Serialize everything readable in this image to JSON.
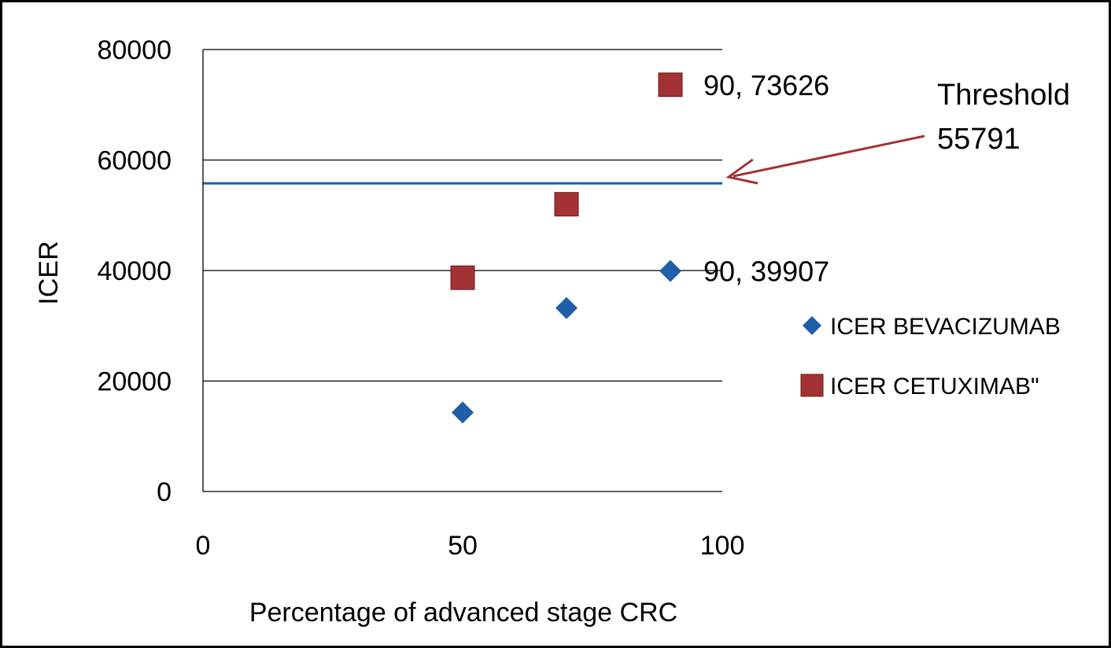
{
  "chart_data": {
    "type": "scatter",
    "xlabel": "Percentage of advanced stage CRC",
    "ylabel": "ICER",
    "xlim": [
      0,
      100
    ],
    "ylim": [
      0,
      80000
    ],
    "x_ticks": [
      "0",
      "50",
      "100"
    ],
    "y_ticks": [
      "0",
      "20000",
      "40000",
      "60000",
      "80000"
    ],
    "grid": "horizontal",
    "legend_position": "right",
    "series": [
      {
        "name": "ICER BEVACIZUMAB",
        "marker": "diamond",
        "color": "#1f5ea8",
        "points": [
          {
            "x": 50,
            "y": 14300
          },
          {
            "x": 70,
            "y": 33200
          },
          {
            "x": 90,
            "y": 39907
          }
        ]
      },
      {
        "name": "ICER CETUXIMAB\"",
        "marker": "square",
        "color": "#a23234",
        "points": [
          {
            "x": 50,
            "y": 38700
          },
          {
            "x": 70,
            "y": 52000
          },
          {
            "x": 90,
            "y": 73626
          }
        ]
      }
    ],
    "data_labels": [
      {
        "series": 1,
        "point": 2,
        "text": "90, 73626"
      },
      {
        "series": 0,
        "point": 2,
        "text": "90, 39907"
      }
    ],
    "threshold": {
      "value": 55791,
      "color": "#1f5ea8",
      "label_line1": "Threshold",
      "label_line2": "55791",
      "arrow_color": "#a23234"
    }
  }
}
